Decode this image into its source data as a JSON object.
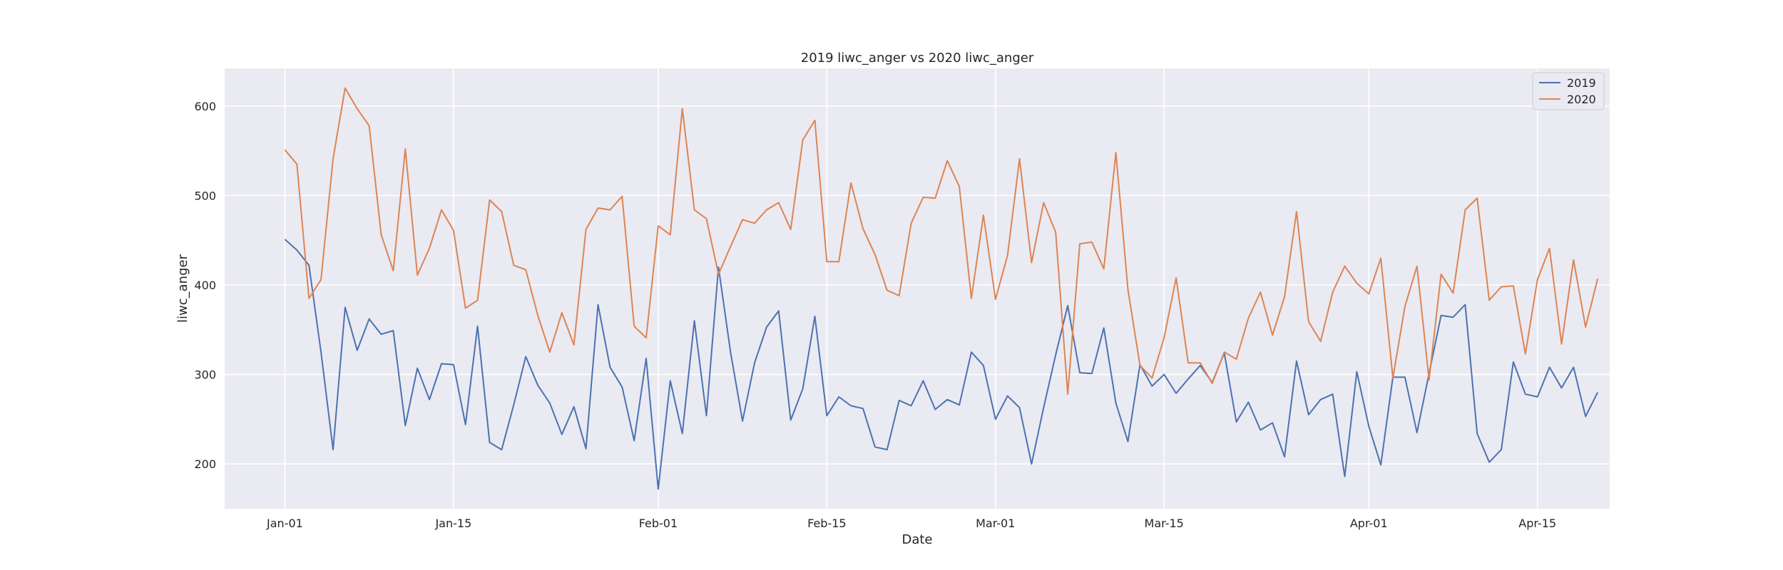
{
  "chart_data": {
    "type": "line",
    "title": "2019 liwc_anger vs 2020 liwc_anger",
    "xlabel": "Date",
    "ylabel": "liwc_anger",
    "ylim": [
      150,
      642
    ],
    "yticks": [
      200,
      300,
      400,
      500,
      600
    ],
    "xlim_days": [
      -5,
      110
    ],
    "xticks": [
      {
        "label": "Jan-01",
        "day": 0
      },
      {
        "label": "Jan-15",
        "day": 14
      },
      {
        "label": "Feb-01",
        "day": 31
      },
      {
        "label": "Feb-15",
        "day": 45
      },
      {
        "label": "Mar-01",
        "day": 59
      },
      {
        "label": "Mar-15",
        "day": 73
      },
      {
        "label": "Apr-01",
        "day": 90
      },
      {
        "label": "Apr-15",
        "day": 104
      }
    ],
    "x_start": "Jan-01",
    "grid": true,
    "legend_position": "upper-right",
    "series": [
      {
        "name": "2019",
        "color": "#4c72b0",
        "values": [
          451,
          439,
          422,
          325,
          216,
          375,
          327,
          362,
          345,
          349,
          243,
          307,
          272,
          312,
          311,
          244,
          354,
          224,
          216,
          266,
          320,
          288,
          268,
          233,
          264,
          217,
          378,
          308,
          286,
          226,
          318,
          172,
          293,
          234,
          360,
          254,
          420,
          325,
          248,
          313,
          353,
          371,
          249,
          284,
          365,
          254,
          275,
          265,
          262,
          219,
          216,
          271,
          265,
          293,
          261,
          272,
          266,
          325,
          310,
          250,
          276,
          263,
          200,
          263,
          322,
          377,
          302,
          301,
          352,
          268,
          225,
          311,
          287,
          300,
          279,
          295,
          310,
          291,
          324,
          247,
          269,
          238,
          246,
          208,
          315,
          255,
          272,
          278,
          186,
          303,
          242,
          199,
          297,
          297,
          235,
          301,
          366,
          364,
          378,
          234,
          202,
          216,
          314,
          278,
          275,
          308,
          285,
          308,
          253,
          280
        ]
      },
      {
        "name": "2020",
        "color": "#dd8452",
        "values": [
          551,
          535,
          385,
          406,
          541,
          620,
          597,
          578,
          456,
          416,
          552,
          411,
          441,
          484,
          461,
          374,
          383,
          495,
          482,
          422,
          417,
          366,
          325,
          369,
          333,
          462,
          486,
          484,
          499,
          354,
          341,
          466,
          456,
          597,
          484,
          474,
          412,
          443,
          473,
          469,
          484,
          492,
          462,
          562,
          584,
          426,
          426,
          514,
          463,
          434,
          394,
          388,
          469,
          498,
          497,
          539,
          510,
          385,
          478,
          384,
          433,
          541,
          425,
          492,
          459,
          278,
          446,
          448,
          418,
          548,
          395,
          310,
          296,
          341,
          408,
          313,
          313,
          290,
          325,
          317,
          363,
          392,
          344,
          387,
          482,
          359,
          337,
          392,
          421,
          402,
          390,
          430,
          296,
          376,
          421,
          294,
          412,
          391,
          484,
          497,
          383,
          398,
          399,
          323,
          406,
          441,
          334,
          428,
          353,
          407
        ]
      }
    ]
  }
}
